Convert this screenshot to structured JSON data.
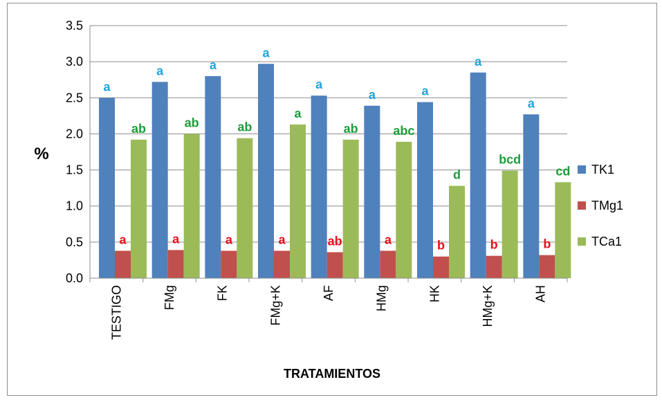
{
  "chart_data": {
    "type": "bar",
    "title": "",
    "xlabel": "TRATAMIENTOS",
    "ylabel": "%",
    "ylim": [
      0,
      3.5
    ],
    "yticks": [
      "0.0",
      "0.5",
      "1.0",
      "1.5",
      "2.0",
      "2.5",
      "3.0",
      "3.5"
    ],
    "grid": true,
    "legend_position": "right",
    "categories": [
      "TESTIGO",
      "FMg",
      "FK",
      "FMg+K",
      "AF",
      "HMg",
      "HK",
      "HMg+K",
      "AH"
    ],
    "series": [
      {
        "name": "TK1",
        "color": "#4F81BD",
        "label_color": "#1FA3DC",
        "values": [
          2.5,
          2.72,
          2.8,
          2.97,
          2.53,
          2.39,
          2.44,
          2.85,
          2.27
        ],
        "labels": [
          "a",
          "a",
          "a",
          "a",
          "a",
          "a",
          "a",
          "a",
          "a"
        ]
      },
      {
        "name": "TMg1",
        "color": "#C0504D",
        "label_color": "#E8101C",
        "values": [
          0.38,
          0.39,
          0.38,
          0.38,
          0.36,
          0.38,
          0.3,
          0.31,
          0.32
        ],
        "labels": [
          "a",
          "a",
          "a",
          "a",
          "ab",
          "a",
          "b",
          "b",
          "b"
        ]
      },
      {
        "name": "TCa1",
        "color": "#9BBB59",
        "label_color": "#1E9C3A",
        "values": [
          1.92,
          2.0,
          1.94,
          2.13,
          1.92,
          1.89,
          1.28,
          1.49,
          1.33
        ],
        "labels": [
          "ab",
          "ab",
          "ab",
          "a",
          "ab",
          "abc",
          "d",
          "bcd",
          "cd"
        ]
      }
    ]
  }
}
